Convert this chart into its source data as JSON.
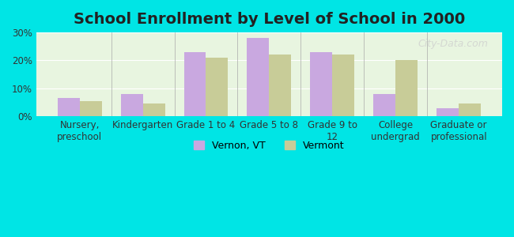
{
  "title": "School Enrollment by Level of School in 2000",
  "categories": [
    "Nursery,\npreschool",
    "Kindergarten",
    "Grade 1 to 4",
    "Grade 5 to 8",
    "Grade 9 to\n12",
    "College\nundergrad",
    "Graduate or\nprofessional"
  ],
  "vernon_values": [
    6.5,
    8.0,
    23.0,
    28.0,
    23.0,
    8.0,
    3.0
  ],
  "vermont_values": [
    5.5,
    4.5,
    21.0,
    22.0,
    22.0,
    20.0,
    4.5
  ],
  "vernon_color": "#c9a8e0",
  "vermont_color": "#c8cc98",
  "background_color": "#00e5e5",
  "plot_bg_color": "#e8f5e0",
  "ylim": [
    0,
    30
  ],
  "yticks": [
    0,
    10,
    20,
    30
  ],
  "ytick_labels": [
    "0%",
    "10%",
    "20%",
    "30%"
  ],
  "legend_labels": [
    "Vernon, VT",
    "Vermont"
  ],
  "bar_width": 0.35,
  "title_fontsize": 14,
  "tick_fontsize": 8.5,
  "legend_fontsize": 9,
  "watermark": "City-Data.com"
}
